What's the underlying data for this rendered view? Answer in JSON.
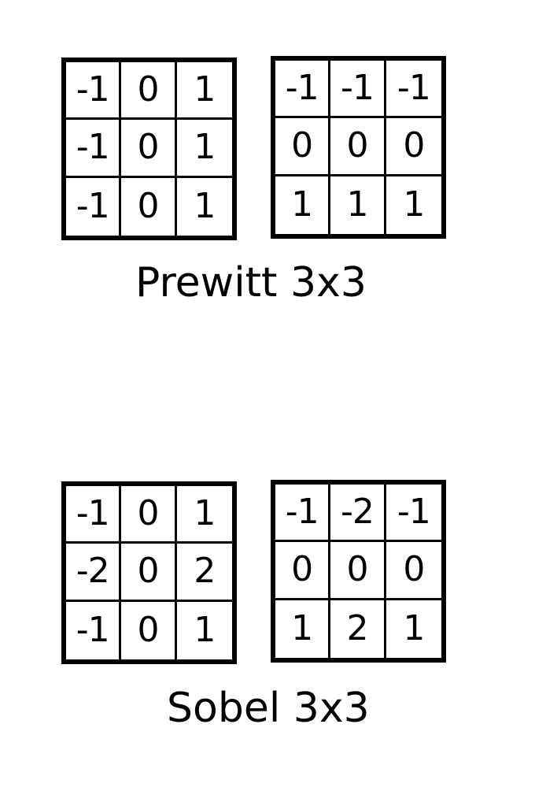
{
  "prewitt": {
    "kernel_x": [
      [
        "-1",
        "0",
        "1"
      ],
      [
        "-1",
        "0",
        "1"
      ],
      [
        "-1",
        "0",
        "1"
      ]
    ],
    "kernel_y": [
      [
        "-1",
        "-1",
        "-1"
      ],
      [
        "0",
        "0",
        "0"
      ],
      [
        "1",
        "1",
        "1"
      ]
    ],
    "caption": "Prewitt 3x3"
  },
  "sobel": {
    "kernel_x": [
      [
        "-1",
        "0",
        "1"
      ],
      [
        "-2",
        "0",
        "2"
      ],
      [
        "-1",
        "0",
        "1"
      ]
    ],
    "kernel_y": [
      [
        "-1",
        "-2",
        "-1"
      ],
      [
        "0",
        "0",
        "0"
      ],
      [
        "1",
        "2",
        "1"
      ]
    ],
    "caption": "Sobel 3x3"
  }
}
